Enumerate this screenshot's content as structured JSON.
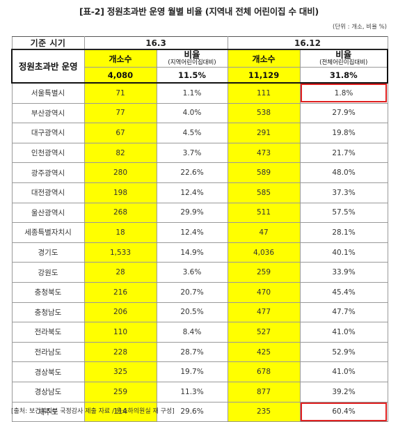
{
  "title": "[표-2] 정원초과반 운영 월별 비율 (지역내 전체 어린이집 수 대비)",
  "unit": "(단위 : 개소, 비율 %)",
  "header": {
    "base_period": "기준 시기",
    "period1": "16.3",
    "period2": "16.12",
    "row_label": "정원초과반 운영",
    "count_label": "개소수",
    "rate_label": "비율",
    "rate1_sub": "(지역어린이집대비)",
    "rate2_sub": "(전체어린이집대비)"
  },
  "total": {
    "c1": "4,080",
    "r1": "11.5%",
    "c2": "11,129",
    "r2": "31.8%"
  },
  "rows": [
    {
      "region": "서울특별시",
      "c1": "71",
      "r1": "1.1%",
      "c2": "111",
      "r2": "1.8%"
    },
    {
      "region": "부산광역시",
      "c1": "77",
      "r1": "4.0%",
      "c2": "538",
      "r2": "27.9%"
    },
    {
      "region": "대구광역시",
      "c1": "67",
      "r1": "4.5%",
      "c2": "291",
      "r2": "19.8%"
    },
    {
      "region": "인천광역시",
      "c1": "82",
      "r1": "3.7%",
      "c2": "473",
      "r2": "21.7%"
    },
    {
      "region": "광주광역시",
      "c1": "280",
      "r1": "22.6%",
      "c2": "589",
      "r2": "48.0%"
    },
    {
      "region": "대전광역시",
      "c1": "198",
      "r1": "12.4%",
      "c2": "585",
      "r2": "37.3%"
    },
    {
      "region": "울산광역시",
      "c1": "268",
      "r1": "29.9%",
      "c2": "511",
      "r2": "57.5%"
    },
    {
      "region": "세종특별자치시",
      "c1": "18",
      "r1": "12.4%",
      "c2": "47",
      "r2": "28.1%"
    },
    {
      "region": "경기도",
      "c1": "1,533",
      "r1": "14.9%",
      "c2": "4,036",
      "r2": "40.1%"
    },
    {
      "region": "강원도",
      "c1": "28",
      "r1": "3.6%",
      "c2": "259",
      "r2": "33.9%"
    },
    {
      "region": "충청북도",
      "c1": "216",
      "r1": "20.7%",
      "c2": "470",
      "r2": "45.4%"
    },
    {
      "region": "충청남도",
      "c1": "206",
      "r1": "20.5%",
      "c2": "477",
      "r2": "47.7%"
    },
    {
      "region": "전라북도",
      "c1": "110",
      "r1": "8.4%",
      "c2": "527",
      "r2": "41.0%"
    },
    {
      "region": "전라남도",
      "c1": "228",
      "r1": "28.7%",
      "c2": "425",
      "r2": "52.9%"
    },
    {
      "region": "경상북도",
      "c1": "325",
      "r1": "19.7%",
      "c2": "678",
      "r2": "41.0%"
    },
    {
      "region": "경상남도",
      "c1": "259",
      "r1": "11.3%",
      "c2": "877",
      "r2": "39.2%"
    },
    {
      "region": "제주도",
      "c1": "114",
      "r1": "29.6%",
      "c2": "235",
      "r2": "60.4%"
    }
  ],
  "highlighted_rows": [
    0,
    16
  ],
  "colors": {
    "count_fill": "#ffff00",
    "highlight_box": "#e02020"
  },
  "source": "[출처: 보건복지부 국정감사 제출 자료 / 윤소하의원실 재 구성]"
}
